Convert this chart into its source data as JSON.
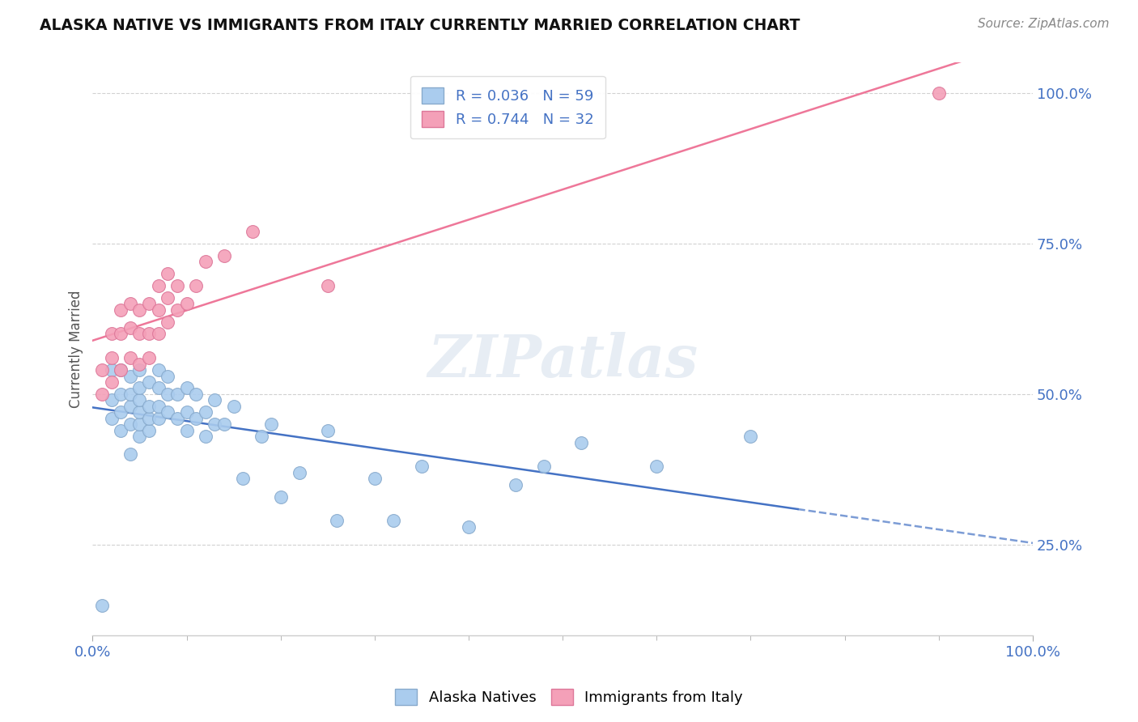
{
  "title": "ALASKA NATIVE VS IMMIGRANTS FROM ITALY CURRENTLY MARRIED CORRELATION CHART",
  "source": "Source: ZipAtlas.com",
  "ylabel": "Currently Married",
  "xlim": [
    0.0,
    1.0
  ],
  "ylim": [
    0.1,
    1.05
  ],
  "ytick_positions": [
    0.25,
    0.5,
    0.75,
    1.0
  ],
  "ytick_labels": [
    "25.0%",
    "50.0%",
    "75.0%",
    "100.0%"
  ],
  "xtick_positions": [
    0.0,
    1.0
  ],
  "xtick_labels": [
    "0.0%",
    "100.0%"
  ],
  "grid_color": "#cccccc",
  "background_color": "#ffffff",
  "watermark": "ZIPatlas",
  "tick_color": "#4472c4",
  "alaska_color": "#aaccee",
  "alaska_edge_color": "#88aacc",
  "italy_color": "#f4a0b8",
  "italy_edge_color": "#dd7799",
  "alaska_R": 0.036,
  "alaska_N": 59,
  "italy_R": 0.744,
  "italy_N": 32,
  "alaska_line_color": "#4472c4",
  "italy_line_color": "#ee7799",
  "alaska_x": [
    0.01,
    0.02,
    0.02,
    0.02,
    0.03,
    0.03,
    0.03,
    0.03,
    0.04,
    0.04,
    0.04,
    0.04,
    0.04,
    0.05,
    0.05,
    0.05,
    0.05,
    0.05,
    0.05,
    0.06,
    0.06,
    0.06,
    0.06,
    0.07,
    0.07,
    0.07,
    0.07,
    0.08,
    0.08,
    0.08,
    0.09,
    0.09,
    0.1,
    0.1,
    0.1,
    0.11,
    0.11,
    0.12,
    0.12,
    0.13,
    0.13,
    0.14,
    0.15,
    0.16,
    0.18,
    0.19,
    0.2,
    0.22,
    0.25,
    0.26,
    0.3,
    0.32,
    0.35,
    0.4,
    0.45,
    0.48,
    0.52,
    0.6,
    0.7
  ],
  "alaska_y": [
    0.15,
    0.46,
    0.49,
    0.54,
    0.44,
    0.47,
    0.5,
    0.54,
    0.4,
    0.45,
    0.48,
    0.5,
    0.53,
    0.43,
    0.45,
    0.47,
    0.49,
    0.51,
    0.54,
    0.44,
    0.46,
    0.48,
    0.52,
    0.46,
    0.48,
    0.51,
    0.54,
    0.47,
    0.5,
    0.53,
    0.46,
    0.5,
    0.44,
    0.47,
    0.51,
    0.46,
    0.5,
    0.43,
    0.47,
    0.45,
    0.49,
    0.45,
    0.48,
    0.36,
    0.43,
    0.45,
    0.33,
    0.37,
    0.44,
    0.29,
    0.36,
    0.29,
    0.38,
    0.28,
    0.35,
    0.38,
    0.42,
    0.38,
    0.43
  ],
  "italy_x": [
    0.01,
    0.01,
    0.02,
    0.02,
    0.02,
    0.03,
    0.03,
    0.03,
    0.04,
    0.04,
    0.04,
    0.05,
    0.05,
    0.05,
    0.06,
    0.06,
    0.06,
    0.07,
    0.07,
    0.07,
    0.08,
    0.08,
    0.08,
    0.09,
    0.09,
    0.1,
    0.11,
    0.12,
    0.14,
    0.17,
    0.25,
    0.9
  ],
  "italy_y": [
    0.5,
    0.54,
    0.52,
    0.56,
    0.6,
    0.54,
    0.6,
    0.64,
    0.56,
    0.61,
    0.65,
    0.55,
    0.6,
    0.64,
    0.56,
    0.6,
    0.65,
    0.6,
    0.64,
    0.68,
    0.62,
    0.66,
    0.7,
    0.64,
    0.68,
    0.65,
    0.68,
    0.72,
    0.73,
    0.77,
    0.68,
    1.0
  ]
}
